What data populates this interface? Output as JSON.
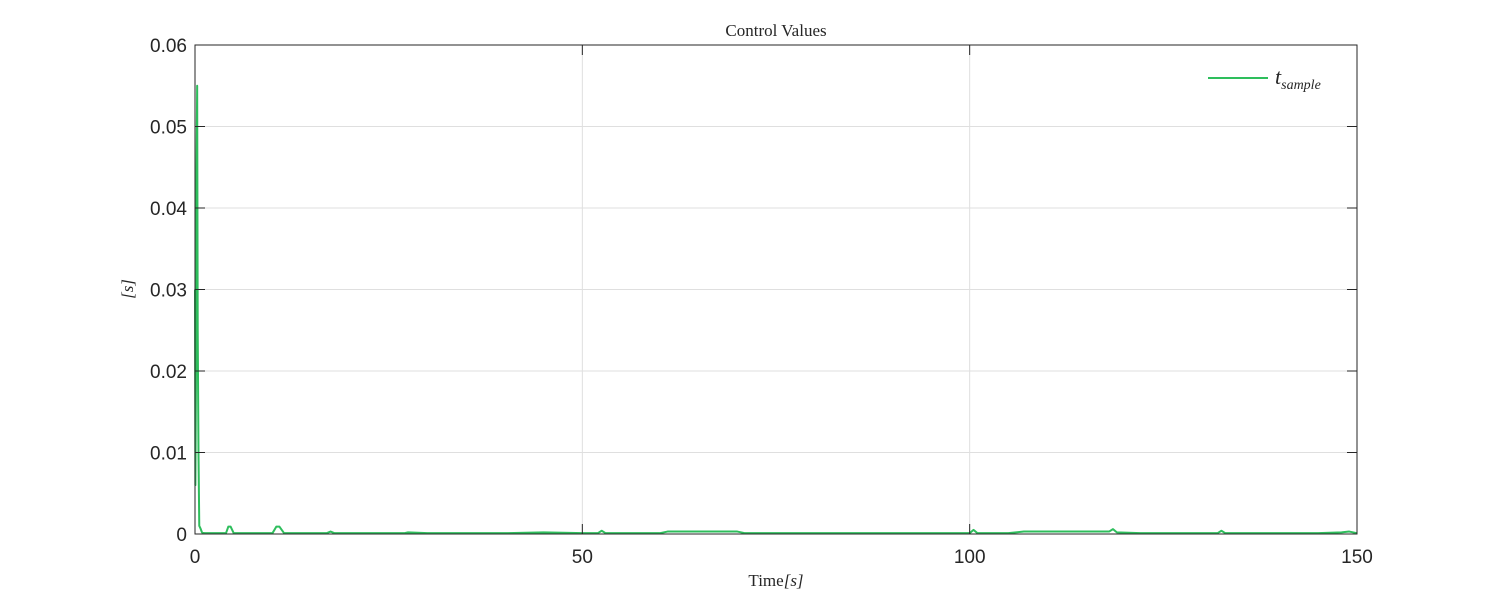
{
  "chart_data": {
    "type": "line",
    "title": "Control Values",
    "xlabel": {
      "text": "Time",
      "unit": "[s]"
    },
    "ylabel": "[s]",
    "xlim": [
      0,
      150
    ],
    "ylim": [
      0,
      0.06
    ],
    "xticks": [
      {
        "value": 0,
        "label": "0"
      },
      {
        "value": 50,
        "label": "50"
      },
      {
        "value": 100,
        "label": "100"
      },
      {
        "value": 150,
        "label": "150"
      }
    ],
    "yticks": [
      {
        "value": 0,
        "label": "0"
      },
      {
        "value": 0.01,
        "label": "0.01"
      },
      {
        "value": 0.02,
        "label": "0.02"
      },
      {
        "value": 0.03,
        "label": "0.03"
      },
      {
        "value": 0.04,
        "label": "0.04"
      },
      {
        "value": 0.05,
        "label": "0.05"
      },
      {
        "value": 0.06,
        "label": "0.06"
      }
    ],
    "grid": true,
    "legend_position": "top-right",
    "series": [
      {
        "name": "t",
        "name_subscript": "sample",
        "color": "#2EBE5C",
        "x": [
          0,
          0.05,
          0.12,
          0.2,
          0.28,
          0.35,
          0.45,
          0.55,
          0.7,
          0.9,
          1.2,
          2,
          3,
          4,
          4.3,
          4.6,
          5,
          6,
          8,
          10,
          10.5,
          10.9,
          11.5,
          13,
          15,
          17,
          17.5,
          18,
          20,
          25,
          27,
          27.5,
          30,
          35,
          40,
          45,
          50,
          52,
          52.5,
          53,
          60,
          61,
          65,
          70,
          71,
          75,
          80,
          85,
          90,
          95,
          100,
          100.5,
          101,
          105,
          107,
          110,
          115,
          118,
          118.5,
          119,
          122,
          125,
          130,
          132,
          132.5,
          133,
          140,
          145,
          148,
          149,
          150
        ],
        "y": [
          0.03,
          0.006,
          0.018,
          0.045,
          0.055,
          0.025,
          0.01,
          0.001,
          0.0007,
          0.0002,
          0.0001,
          0.0001,
          0.0001,
          0.0001,
          0.0009,
          0.0009,
          0.0001,
          0.0001,
          0.0001,
          0.0001,
          0.0009,
          0.0009,
          0.0001,
          0.0001,
          0.0001,
          0.0001,
          0.0003,
          0.0001,
          0.0001,
          0.0001,
          0.0001,
          0.0002,
          0.0001,
          0.0001,
          0.0001,
          0.0002,
          0.0001,
          0.0001,
          0.0004,
          0.0001,
          0.0001,
          0.0003,
          0.0003,
          0.0003,
          0.0001,
          0.0001,
          0.0001,
          0.0001,
          0.0001,
          0.0001,
          0.0001,
          0.0005,
          0.0001,
          0.0001,
          0.0003,
          0.0003,
          0.0003,
          0.0003,
          0.0006,
          0.0002,
          0.0001,
          0.0001,
          0.0001,
          0.0001,
          0.0004,
          0.0001,
          0.0001,
          0.0001,
          0.0002,
          0.0003,
          0.0001
        ]
      }
    ]
  }
}
